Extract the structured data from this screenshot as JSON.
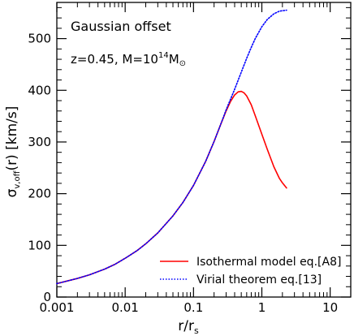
{
  "chart_data": {
    "type": "line",
    "xscale": "log",
    "xlim": [
      0.001,
      20
    ],
    "ylim": [
      0,
      570
    ],
    "xlabel": {
      "main": "r/r",
      "sub": "s"
    },
    "ylabel": {
      "main": "σ",
      "sub": "v,off",
      "rest": "(r) [km/s]"
    },
    "x_ticks": [
      {
        "value": 0.001,
        "label": "0.001"
      },
      {
        "value": 0.01,
        "label": "0.01"
      },
      {
        "value": 0.1,
        "label": "0.1"
      },
      {
        "value": 1,
        "label": "1"
      },
      {
        "value": 10,
        "label": "10"
      }
    ],
    "y_ticks": [
      {
        "value": 0,
        "label": "0"
      },
      {
        "value": 100,
        "label": "100"
      },
      {
        "value": 200,
        "label": "200"
      },
      {
        "value": 300,
        "label": "300"
      },
      {
        "value": 400,
        "label": "400"
      },
      {
        "value": 500,
        "label": "500"
      }
    ],
    "annotations": {
      "title": "Gaussian offset",
      "params_prefix": "z=0.45,  M=10",
      "params_exp": "14",
      "params_sub": "M",
      "params_sub_index": "⊙"
    },
    "legend_position": "bottom-right",
    "series": [
      {
        "name": "Isothermal model eq.[A8]",
        "color": "#ff0000",
        "style": "solid",
        "x": [
          0.001,
          0.002,
          0.003,
          0.005,
          0.007,
          0.01,
          0.015,
          0.02,
          0.03,
          0.05,
          0.07,
          0.1,
          0.15,
          0.2,
          0.25,
          0.3,
          0.35,
          0.4,
          0.45,
          0.5,
          0.55,
          0.6,
          0.7,
          0.8,
          1.0,
          1.2,
          1.5,
          1.8,
          2.0,
          2.3
        ],
        "y": [
          26,
          36,
          43,
          54,
          63,
          75,
          90,
          103,
          124,
          157,
          183,
          216,
          262,
          301,
          334,
          360,
          379,
          391,
          397,
          398,
          395,
          389,
          372,
          351,
          315,
          286,
          252,
          230,
          221,
          211
        ]
      },
      {
        "name": "Virial theorem eq.[13]",
        "color": "#0000ff",
        "style": "dotted",
        "x": [
          0.001,
          0.002,
          0.003,
          0.005,
          0.007,
          0.01,
          0.015,
          0.02,
          0.03,
          0.05,
          0.07,
          0.1,
          0.15,
          0.2,
          0.25,
          0.3,
          0.4,
          0.5,
          0.6,
          0.7,
          0.8,
          1.0,
          1.2,
          1.5,
          1.8,
          2.0,
          2.3
        ],
        "y": [
          26,
          36,
          43,
          54,
          63,
          75,
          90,
          103,
          124,
          157,
          183,
          216,
          262,
          301,
          334,
          362,
          402,
          435,
          462,
          483,
          500,
          523,
          537,
          548,
          553,
          554,
          555
        ]
      }
    ]
  }
}
